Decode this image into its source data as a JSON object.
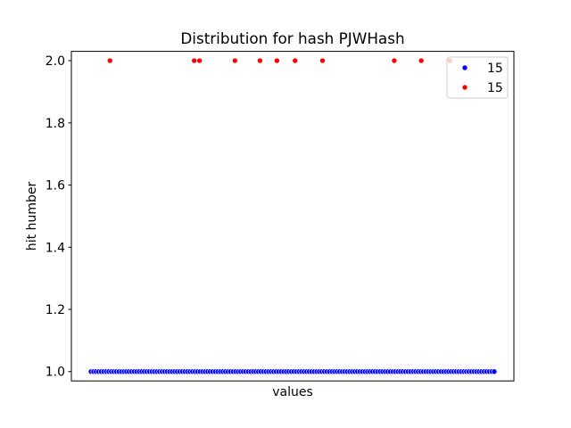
{
  "chart_data": {
    "type": "scatter",
    "title": "Distribution for hash PJWHash",
    "xlabel": "values",
    "ylabel": "hit humber",
    "ylim": [
      0.97,
      2.03
    ],
    "yticks": [
      "1.0",
      "1.2",
      "1.4",
      "1.6",
      "1.8",
      "2.0"
    ],
    "xticks_shown": false,
    "grid": false,
    "legend_position": "top-right",
    "series": [
      {
        "name": "15",
        "color": "#0000ff",
        "y": 1.0,
        "count": 160,
        "x_domain": [
          0,
          1
        ]
      },
      {
        "name": "15",
        "color": "#ff0000",
        "y": 2.0,
        "x": [
          0.047,
          0.256,
          0.269,
          0.357,
          0.419,
          0.461,
          0.506,
          0.574,
          0.752,
          0.819,
          0.89
        ]
      }
    ]
  }
}
